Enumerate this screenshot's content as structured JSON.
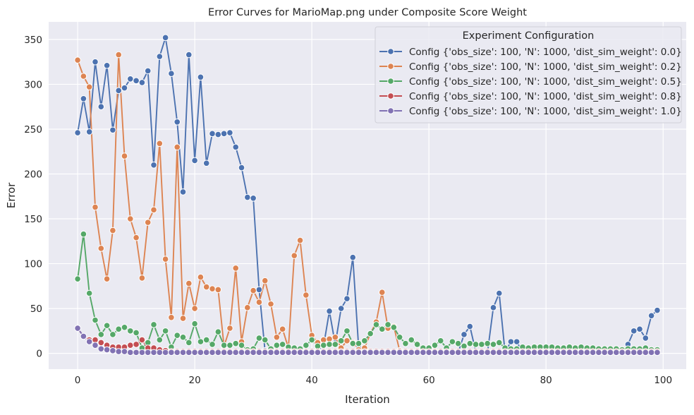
{
  "chart_data": {
    "type": "line",
    "title": "Error Curves for MarioMap.png under Composite Score Weight",
    "xlabel": "Iteration",
    "ylabel": "Error",
    "xlim": [
      -4.95,
      103.95
    ],
    "ylim": [
      -17.6,
      369.6
    ],
    "xticks": [
      0,
      20,
      40,
      60,
      80,
      100
    ],
    "yticks": [
      0,
      50,
      100,
      150,
      200,
      250,
      300,
      350
    ],
    "grid": true,
    "background": "#eaeaf2",
    "legend": {
      "title": "Experiment Configuration",
      "placement": "top-right"
    },
    "x": [
      0,
      1,
      2,
      3,
      4,
      5,
      6,
      7,
      8,
      9,
      10,
      11,
      12,
      13,
      14,
      15,
      16,
      17,
      18,
      19,
      20,
      21,
      22,
      23,
      24,
      25,
      26,
      27,
      28,
      29,
      30,
      31,
      32,
      33,
      34,
      35,
      36,
      37,
      38,
      39,
      40,
      41,
      42,
      43,
      44,
      45,
      46,
      47,
      48,
      49,
      50,
      51,
      52,
      53,
      54,
      55,
      56,
      57,
      58,
      59,
      60,
      61,
      62,
      63,
      64,
      65,
      66,
      67,
      68,
      69,
      70,
      71,
      72,
      73,
      74,
      75,
      76,
      77,
      78,
      79,
      80,
      81,
      82,
      83,
      84,
      85,
      86,
      87,
      88,
      89,
      90,
      91,
      92,
      93,
      94,
      95,
      96,
      97,
      98,
      99
    ],
    "series": [
      {
        "name": "Config {'obs_size': 100, 'N': 1000, 'dist_sim_weight': 0.0}",
        "color": "#4c72b0",
        "values": [
          246,
          284,
          247,
          325,
          275,
          321,
          249,
          293,
          296,
          306,
          304,
          302,
          315,
          210,
          331,
          352,
          312,
          258,
          180,
          333,
          215,
          308,
          212,
          245,
          244,
          245,
          246,
          230,
          207,
          174,
          173,
          71,
          3,
          1,
          1,
          1,
          1,
          1,
          1,
          1,
          1,
          3,
          8,
          47,
          10,
          50,
          61,
          107,
          6,
          4,
          2,
          1,
          2,
          1,
          2,
          1,
          1,
          1,
          1,
          1,
          1,
          1,
          1,
          1,
          1,
          1,
          21,
          30,
          2,
          1,
          1,
          51,
          67,
          1,
          13,
          13,
          1,
          1,
          1,
          1,
          1,
          1,
          1,
          1,
          1,
          1,
          1,
          1,
          1,
          1,
          1,
          1,
          1,
          1,
          10,
          25,
          27,
          17,
          42,
          48
        ]
      },
      {
        "name": "Config {'obs_size': 100, 'N': 1000, 'dist_sim_weight': 0.2}",
        "color": "#dd8452",
        "values": [
          327,
          309,
          297,
          163,
          117,
          83,
          137,
          333,
          220,
          150,
          129,
          84,
          146,
          160,
          234,
          105,
          40,
          230,
          39,
          78,
          50,
          85,
          74,
          72,
          71,
          8,
          28,
          95,
          13,
          51,
          70,
          57,
          81,
          55,
          18,
          27,
          6,
          109,
          126,
          65,
          20,
          12,
          15,
          16,
          18,
          6,
          14,
          12,
          4,
          6,
          22,
          35,
          68,
          28,
          30,
          3,
          2,
          2,
          2,
          2,
          2,
          2,
          1,
          1,
          1,
          1,
          1,
          1,
          1,
          1,
          1,
          1,
          1,
          1,
          1,
          1,
          1,
          1,
          1,
          1,
          1,
          1,
          1,
          1,
          1,
          1,
          1,
          1,
          1,
          1,
          1,
          1,
          1,
          1,
          1,
          1,
          1,
          1,
          1,
          1
        ]
      },
      {
        "name": "Config {'obs_size': 100, 'N': 1000, 'dist_sim_weight': 0.5}",
        "color": "#55a868",
        "values": [
          83,
          133,
          67,
          37,
          21,
          31,
          21,
          27,
          29,
          25,
          23,
          6,
          12,
          32,
          15,
          25,
          7,
          20,
          18,
          12,
          33,
          13,
          15,
          10,
          24,
          9,
          9,
          11,
          9,
          4,
          5,
          17,
          15,
          5,
          9,
          10,
          7,
          6,
          5,
          9,
          15,
          8,
          9,
          10,
          10,
          14,
          25,
          11,
          11,
          14,
          22,
          32,
          27,
          32,
          29,
          18,
          11,
          15,
          10,
          6,
          6,
          9,
          14,
          6,
          13,
          11,
          8,
          11,
          10,
          10,
          11,
          10,
          12,
          6,
          5,
          5,
          7,
          6,
          7,
          7,
          7,
          7,
          6,
          6,
          7,
          6,
          7,
          6,
          6,
          5,
          5,
          5,
          5,
          4,
          5,
          5,
          5,
          6,
          4,
          4
        ]
      },
      {
        "name": "Config {'obs_size': 100, 'N': 1000, 'dist_sim_weight': 0.8}",
        "color": "#c44e52",
        "values": [
          28,
          19,
          15,
          15,
          12,
          9,
          7,
          7,
          7,
          9,
          10,
          15,
          6,
          6,
          4,
          3,
          2,
          2,
          2,
          2,
          2,
          2,
          2,
          2,
          2,
          2,
          2,
          2,
          2,
          2,
          2,
          2,
          2,
          2,
          2,
          2,
          2,
          2,
          2,
          2,
          2,
          2,
          2,
          2,
          2,
          2,
          2,
          2,
          2,
          2,
          2,
          2,
          2,
          2,
          2,
          2,
          2,
          2,
          2,
          2,
          2,
          2,
          2,
          2,
          2,
          2,
          2,
          2,
          2,
          2,
          2,
          2,
          2,
          2,
          2,
          2,
          2,
          2,
          2,
          2,
          2,
          2,
          2,
          2,
          2,
          2,
          2,
          2,
          2,
          2,
          2,
          2,
          2,
          2,
          2,
          2,
          2,
          2,
          2,
          2
        ]
      },
      {
        "name": "Config {'obs_size': 100, 'N': 1000, 'dist_sim_weight': 1.0}",
        "color": "#8172b3",
        "values": [
          28,
          19,
          13,
          9,
          5,
          4,
          3,
          2,
          2,
          1,
          1,
          1,
          1,
          1,
          1,
          1,
          1,
          1,
          1,
          1,
          1,
          1,
          1,
          1,
          1,
          1,
          1,
          1,
          1,
          1,
          1,
          1,
          1,
          1,
          1,
          1,
          1,
          1,
          1,
          1,
          1,
          1,
          1,
          1,
          1,
          1,
          1,
          1,
          1,
          1,
          1,
          1,
          1,
          1,
          1,
          1,
          1,
          1,
          1,
          1,
          1,
          1,
          1,
          1,
          1,
          1,
          1,
          1,
          1,
          1,
          1,
          1,
          1,
          1,
          1,
          1,
          1,
          1,
          1,
          1,
          1,
          1,
          1,
          1,
          1,
          1,
          1,
          1,
          1,
          1,
          1,
          1,
          1,
          1,
          1,
          1,
          1,
          1,
          1,
          1
        ]
      }
    ]
  }
}
